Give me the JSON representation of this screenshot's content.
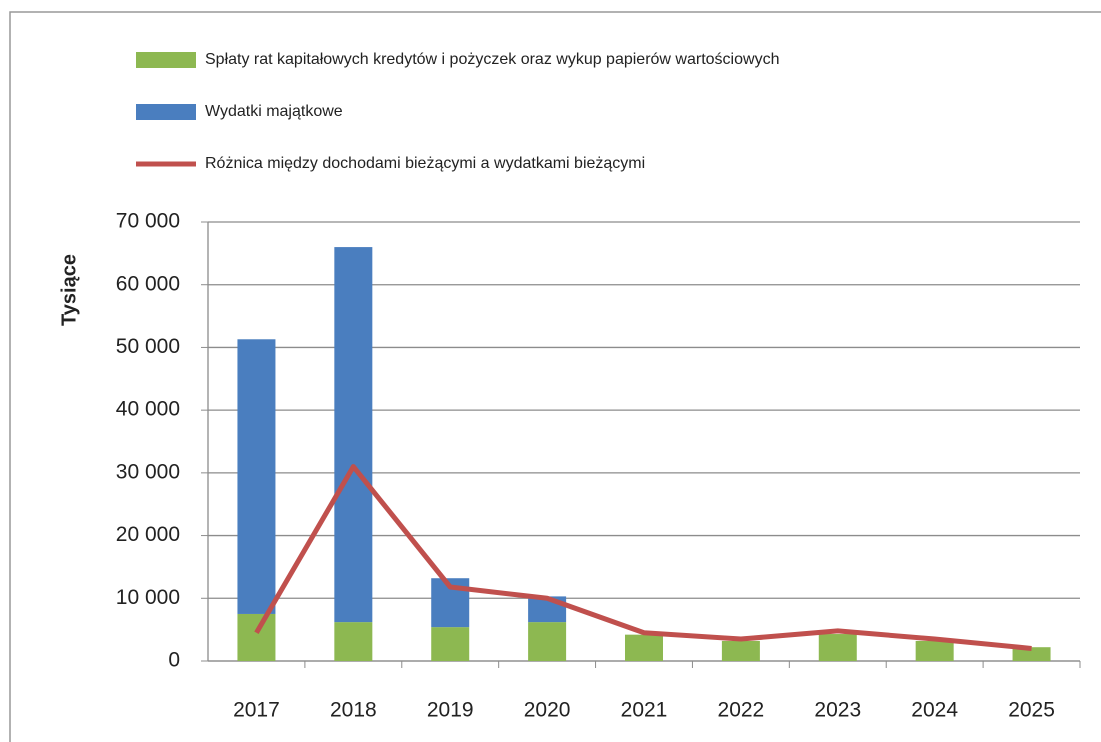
{
  "chart_data": {
    "type": "stacked-bar-line",
    "y_label": "Tysiące",
    "categories": [
      "2017",
      "2018",
      "2019",
      "2020",
      "2021",
      "2022",
      "2023",
      "2024",
      "2025"
    ],
    "series": [
      {
        "name": "Spłaty rat kapitałowych kredytów i pożyczek oraz wykup papierów wartościowych",
        "color": "#8db851",
        "kind": "bar",
        "values": [
          7500,
          6200,
          5400,
          6200,
          4200,
          3200,
          4300,
          3200,
          2200
        ]
      },
      {
        "name": "Wydatki majątkowe",
        "color": "#4a7ebf",
        "kind": "bar",
        "values": [
          43800,
          59800,
          7800,
          4100,
          0,
          0,
          0,
          0,
          0
        ]
      },
      {
        "name": "Różnica między dochodami bieżącymi a wydatkami bieżącymi",
        "color": "#c0504d",
        "kind": "line",
        "values": [
          4500,
          31000,
          11800,
          10000,
          4500,
          3500,
          4800,
          3500,
          2000
        ]
      }
    ],
    "ylim": [
      0,
      70000
    ],
    "yticks": [
      0,
      {
        "value": 10000,
        "label": "10 000"
      },
      {
        "value": 20000,
        "label": "20 000"
      },
      {
        "value": 30000,
        "label": "30 000"
      },
      {
        "value": 40000,
        "label": "40 000"
      },
      {
        "value": 50000,
        "label": "50 000"
      },
      {
        "value": 60000,
        "label": "60 000"
      },
      {
        "value": 70000,
        "label": "70 000"
      }
    ],
    "grid": true
  }
}
